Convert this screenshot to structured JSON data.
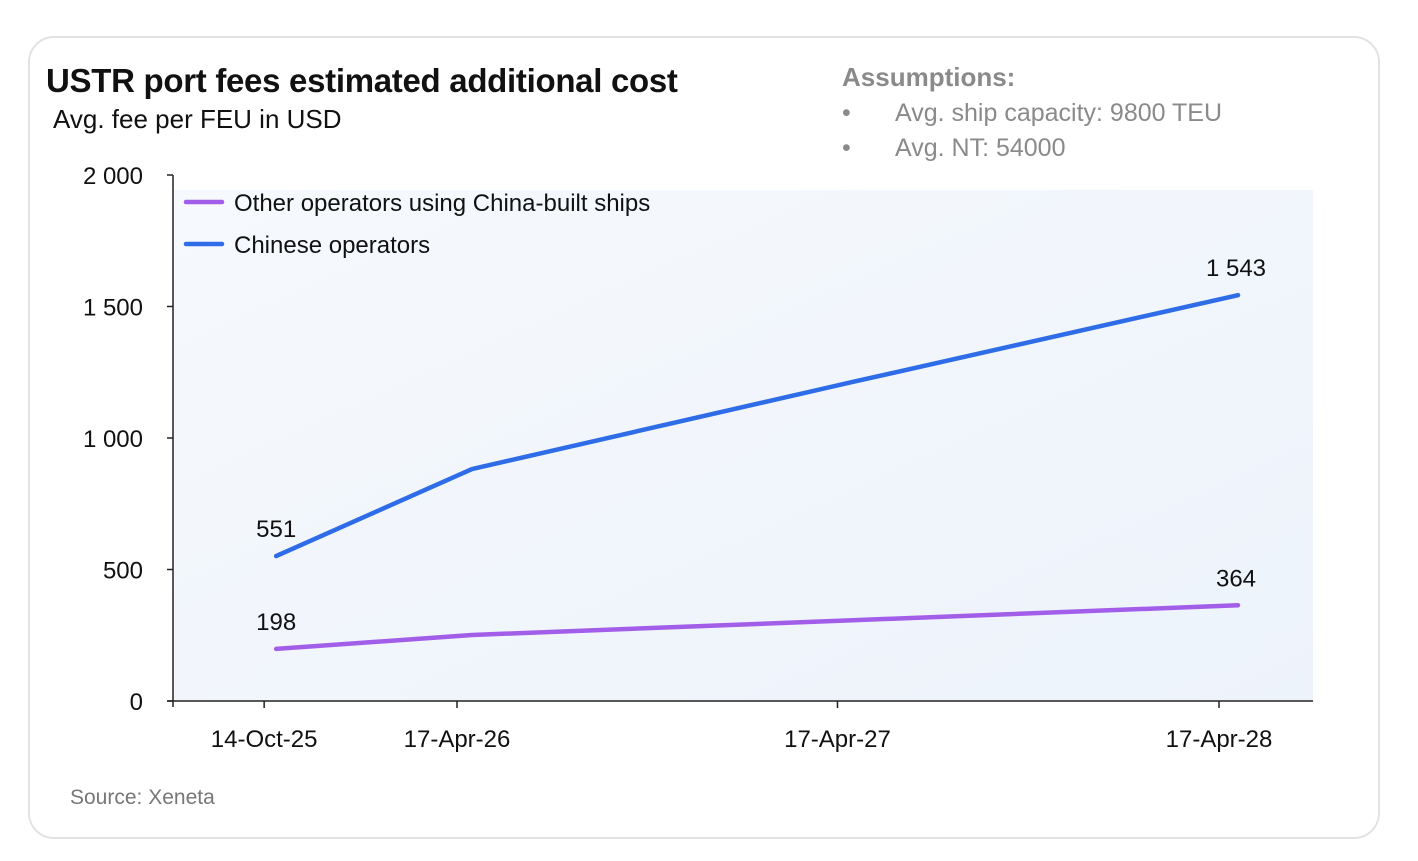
{
  "chart_data": {
    "type": "line",
    "title": "USTR port fees estimated additional cost",
    "subtitle": "Avg. fee per FEU in USD",
    "xlabel": "",
    "ylabel": "",
    "x": [
      "14-Oct-25",
      "17-Apr-26",
      "17-Apr-27",
      "17-Apr-28"
    ],
    "x_tick_labels": [
      "14-Oct-25",
      "17-Apr-26",
      "17-Apr-27",
      "17-Apr-28"
    ],
    "y_tick_labels": [
      "0",
      "500",
      "1 000",
      "1 500",
      "2 000"
    ],
    "ylim": [
      0,
      2000
    ],
    "grid": false,
    "legend_position": "top-left",
    "series": [
      {
        "name": "Other operators using China-built ships",
        "color": "#a25ee8",
        "values": [
          198,
          251,
          307,
          364
        ],
        "data_labels": [
          "198",
          null,
          null,
          "364"
        ]
      },
      {
        "name": "Chinese operators",
        "color": "#2f6ce8",
        "values": [
          551,
          882,
          1213,
          1543
        ],
        "data_labels": [
          "551",
          null,
          null,
          "1 543"
        ]
      }
    ]
  },
  "assumptions": {
    "heading": "Assumptions:",
    "items": [
      "Avg. ship capacity: 9800 TEU",
      "Avg. NT: 54000"
    ]
  },
  "source": "Source: Xeneta"
}
